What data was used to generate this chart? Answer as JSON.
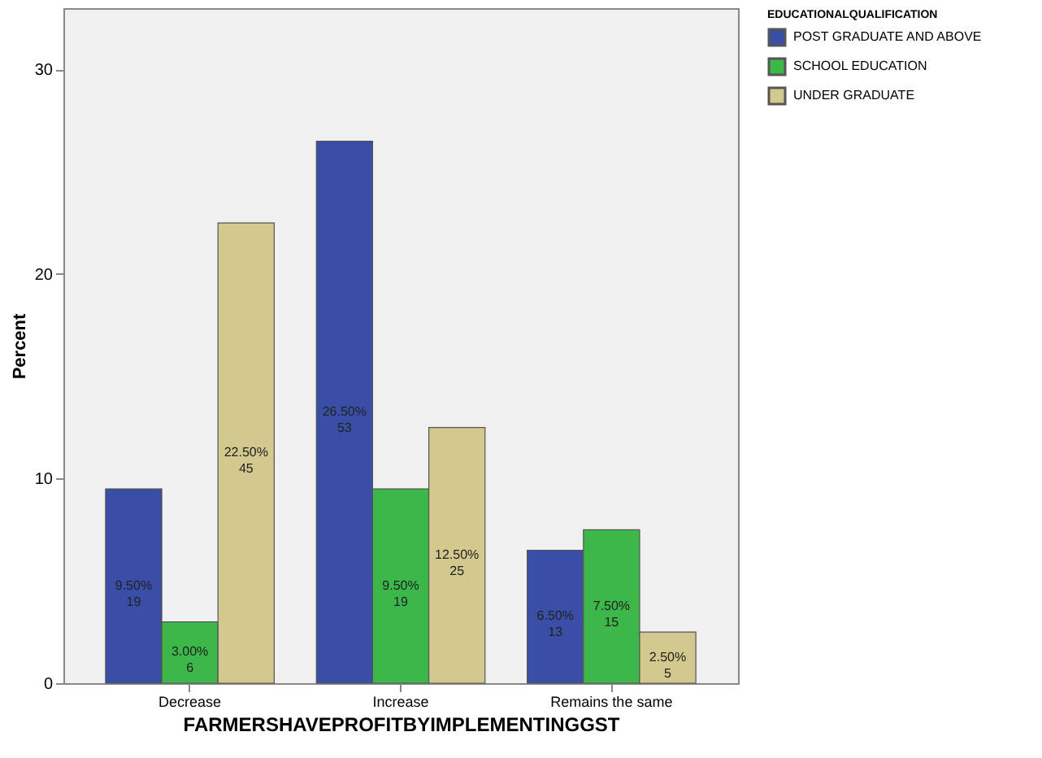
{
  "chart_data": {
    "type": "bar",
    "xlabel": "FARMERSHAVEPROFITBYIMPLEMENTINGGST",
    "ylabel": "Percent",
    "legend_title": "EDUCATIONALQUALIFICATION",
    "categories": [
      "Decrease",
      "Increase",
      "Remains the same"
    ],
    "series": [
      {
        "name": "POST GRADUATE AND ABOVE",
        "color": "#3a4ea6",
        "values": [
          9.5,
          26.5,
          6.5
        ],
        "value_labels": [
          "9.50%\n19",
          "26.50%\n53",
          "6.50%\n13"
        ]
      },
      {
        "name": "SCHOOL EDUCATION",
        "color": "#3cb84a",
        "values": [
          3.0,
          9.5,
          7.5
        ],
        "value_labels": [
          "3.00%\n6",
          "9.50%\n19",
          "7.50%\n15"
        ]
      },
      {
        "name": "UNDER GRADUATE",
        "color": "#d3c98f",
        "values": [
          22.5,
          12.5,
          2.5
        ],
        "value_labels": [
          "22.50%\n45",
          "12.50%\n25",
          "2.50%\n5"
        ]
      }
    ],
    "ylim": [
      0,
      33
    ],
    "yticks": [
      0,
      10,
      20,
      30
    ],
    "grid": false,
    "legend": "top right"
  }
}
